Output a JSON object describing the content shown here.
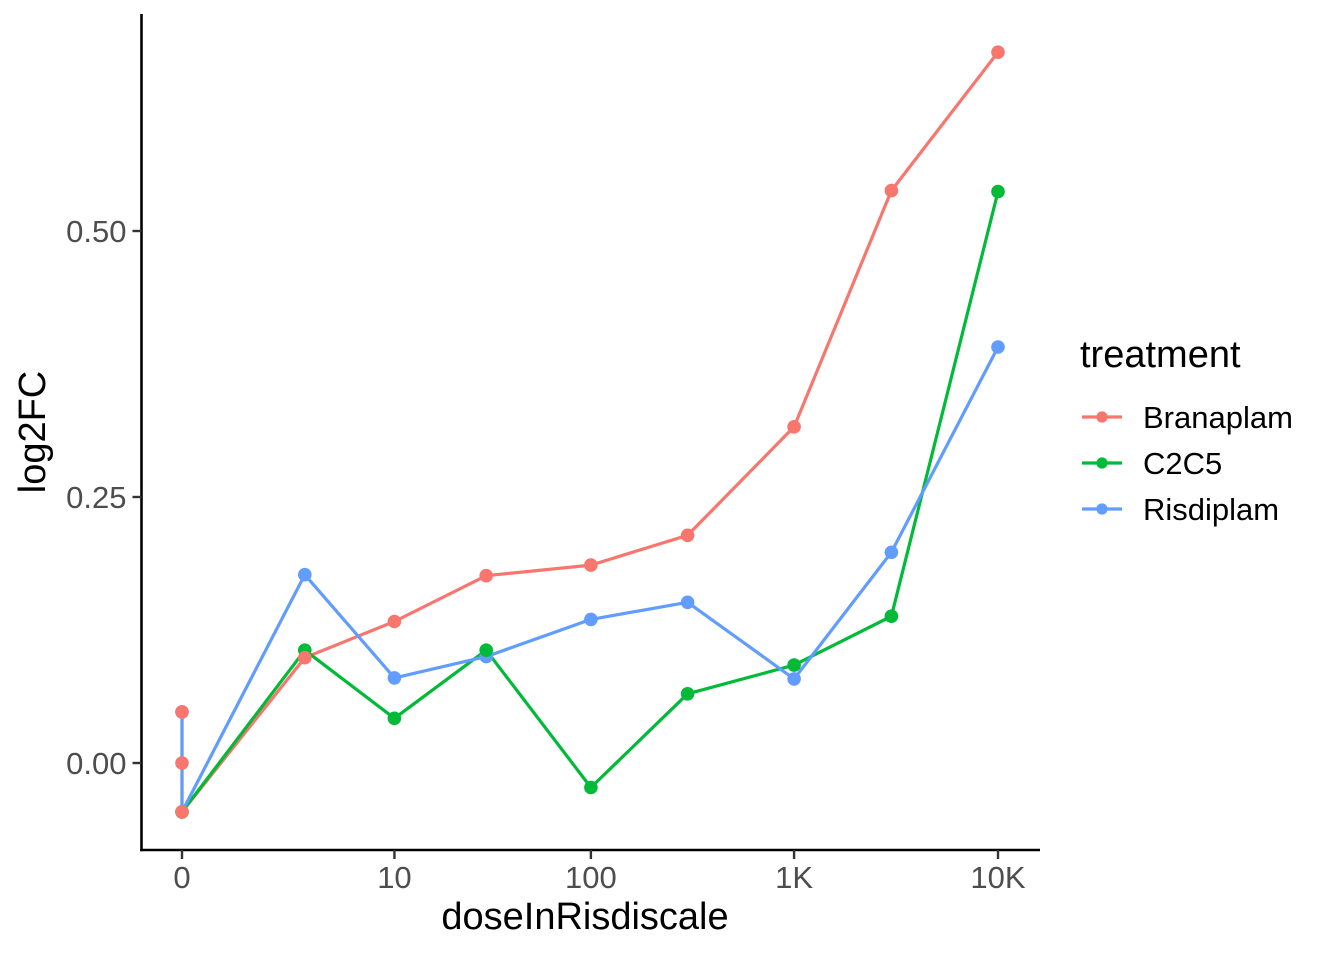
{
  "figure": {
    "background_color": "#FFFFFF",
    "axis_color": "#000000",
    "tick_label_color": "#4D4D4D",
    "x_axis_title": "doseInRisdiscale",
    "y_axis_title": "log2FC"
  },
  "legend": {
    "title": "treatment",
    "items": [
      "Branaplam",
      "C2C5",
      "Risdiplam"
    ]
  },
  "chart_data": {
    "type": "line",
    "title": "",
    "xlabel": "doseInRisdiscale",
    "ylabel": "log2FC",
    "x_scale": "pseudo-log: position ~ log10(dose+1)",
    "x_ticks": [
      {
        "value": 0,
        "label": "0"
      },
      {
        "value": 10,
        "label": "10"
      },
      {
        "value": 100,
        "label": "100"
      },
      {
        "value": 1000,
        "label": "1K"
      },
      {
        "value": 10000,
        "label": "10K"
      }
    ],
    "y_ticks": [
      {
        "value": 0.0,
        "label": "0.00"
      },
      {
        "value": 0.25,
        "label": "0.25"
      },
      {
        "value": 0.5,
        "label": "0.50"
      }
    ],
    "ylim": [
      -0.085,
      0.703
    ],
    "grid": false,
    "legend_title": "treatment",
    "legend_position": "right",
    "series": [
      {
        "name": "Branaplam",
        "color": "#F8766D",
        "points": [
          [
            0,
            0.048
          ],
          [
            0,
            0.0
          ],
          [
            0,
            -0.046
          ],
          [
            3,
            0.099
          ],
          [
            10,
            0.133
          ],
          [
            30,
            0.176
          ],
          [
            100,
            0.186
          ],
          [
            300,
            0.214
          ],
          [
            1000,
            0.316
          ],
          [
            3000,
            0.538
          ],
          [
            10000,
            0.668
          ]
        ]
      },
      {
        "name": "C2C5",
        "color": "#00BA38",
        "points": [
          [
            0,
            -0.046
          ],
          [
            3,
            0.106
          ],
          [
            10,
            0.042
          ],
          [
            30,
            0.106
          ],
          [
            100,
            -0.023
          ],
          [
            300,
            0.065
          ],
          [
            1000,
            0.092
          ],
          [
            3000,
            0.138
          ],
          [
            10000,
            0.537
          ]
        ]
      },
      {
        "name": "Risdiplam",
        "color": "#619CFF",
        "points": [
          [
            0,
            0.048
          ],
          [
            0,
            -0.046
          ],
          [
            3,
            0.177
          ],
          [
            10,
            0.08
          ],
          [
            30,
            0.1
          ],
          [
            100,
            0.135
          ],
          [
            300,
            0.151
          ],
          [
            1000,
            0.079
          ],
          [
            3000,
            0.198
          ],
          [
            10000,
            0.391
          ]
        ]
      }
    ],
    "line_draw_order": [
      "Branaplam",
      "C2C5",
      "Risdiplam"
    ],
    "point_draw_order": [
      "Risdiplam",
      "C2C5",
      "Branaplam"
    ]
  }
}
